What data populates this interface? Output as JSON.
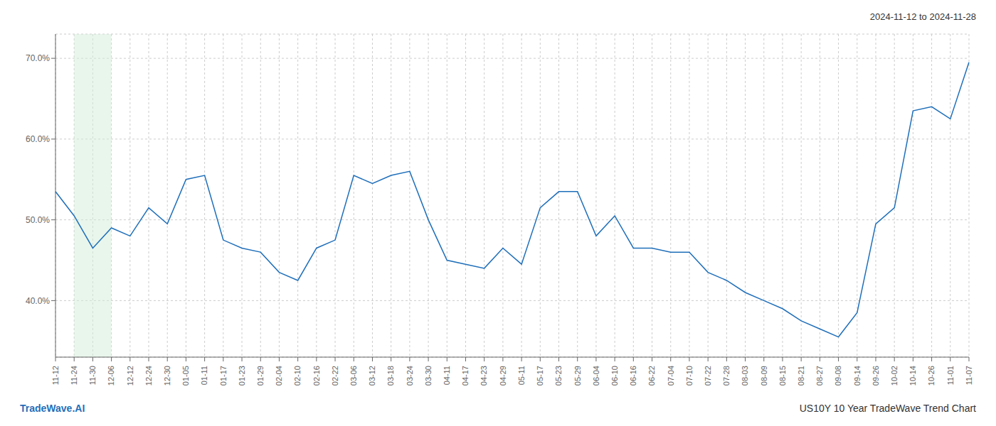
{
  "chart_data": {
    "type": "line",
    "annotations": [
      {
        "text": "2024-11-12 to 2024-11-28",
        "color": "#333333"
      },
      {
        "text": "TradeWave.AI",
        "color": "#1f6fba"
      },
      {
        "text": "US10Y 10 Year TradeWave Trend Chart",
        "color": "#333333"
      }
    ],
    "categories": [
      "11-12",
      "11-24",
      "11-30",
      "12-06",
      "12-12",
      "12-24",
      "12-30",
      "01-05",
      "01-11",
      "01-17",
      "01-23",
      "01-29",
      "02-04",
      "02-10",
      "02-16",
      "02-22",
      "03-06",
      "03-12",
      "03-18",
      "03-24",
      "03-30",
      "04-11",
      "04-17",
      "04-23",
      "04-29",
      "05-11",
      "05-17",
      "05-23",
      "05-29",
      "06-04",
      "06-10",
      "06-16",
      "06-22",
      "07-04",
      "07-10",
      "07-22",
      "07-28",
      "08-03",
      "08-09",
      "08-15",
      "08-21",
      "08-27",
      "09-08",
      "09-14",
      "09-26",
      "10-02",
      "10-14",
      "10-26",
      "11-01",
      "11-07"
    ],
    "values": [
      53.5,
      50.5,
      46.5,
      49.0,
      48.0,
      51.5,
      49.5,
      55.0,
      55.5,
      47.5,
      46.5,
      46.0,
      43.5,
      42.5,
      46.5,
      47.5,
      55.5,
      54.5,
      55.5,
      56.0,
      50.0,
      45.0,
      44.5,
      44.0,
      46.5,
      44.5,
      51.5,
      53.5,
      53.5,
      48.0,
      50.5,
      46.5,
      46.5,
      46.0,
      46.0,
      43.5,
      42.5,
      41.0,
      40.0,
      39.0,
      37.5,
      36.5,
      35.5,
      38.5,
      49.5,
      51.5,
      63.5,
      64.0,
      62.5,
      69.5
    ],
    "color": "#1f6fba",
    "shaded_range": {
      "from": "11-24",
      "to": "12-06",
      "color": "#d4edda"
    },
    "ylim": [
      33,
      73
    ],
    "yticks": [
      {
        "value": 40.0,
        "label": "40.0%"
      },
      {
        "value": 50.0,
        "label": "50.0%"
      },
      {
        "value": 60.0,
        "label": "60.0%"
      },
      {
        "value": 70.0,
        "label": "70.0%"
      }
    ],
    "grid": true
  }
}
